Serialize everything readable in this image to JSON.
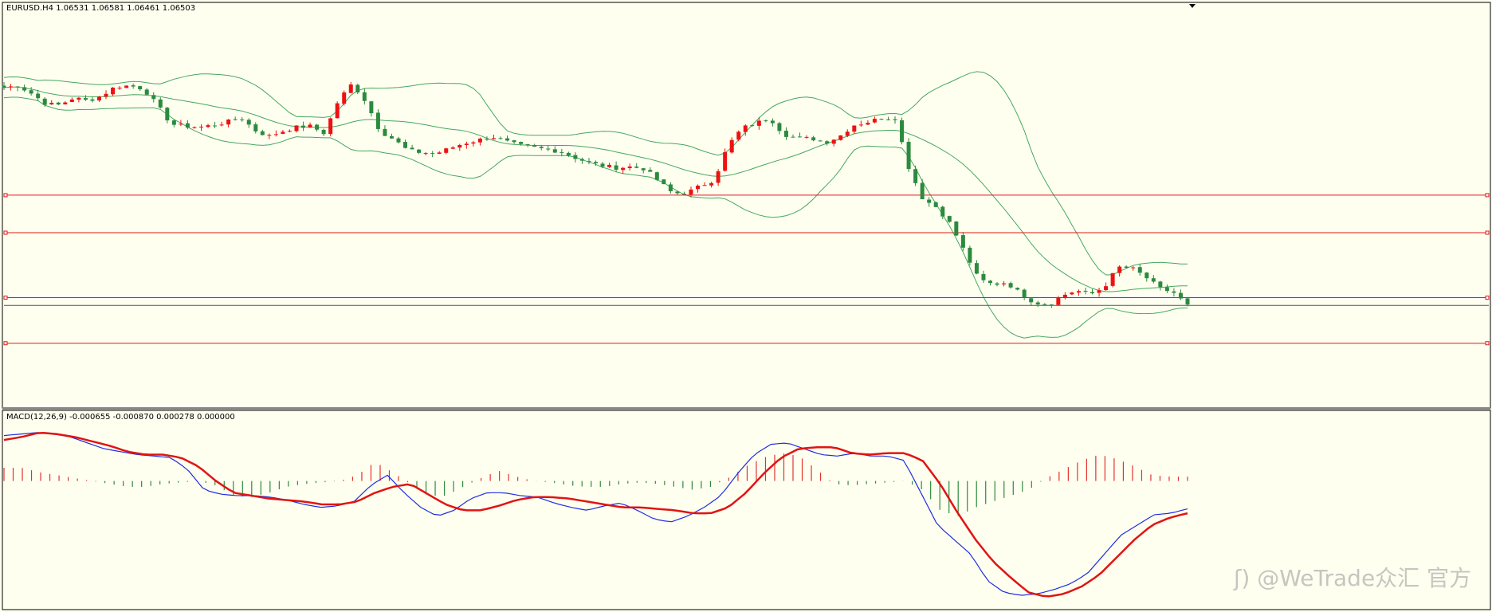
{
  "colors": {
    "background": "#fffff0",
    "bull_candle": "#ee1111",
    "bear_candle": "#2b8a3e",
    "bollinger": "#44a860",
    "level_line": "#e01818",
    "current_price_line": "#555555",
    "macd_line": "#1f2ee0",
    "signal_line": "#e01414",
    "hist_positive": "#e53030",
    "hist_negative": "#2b8a3e"
  },
  "price_panel": {
    "header": "EURUSD.H4  1.06531 1.06581 1.06461 1.06503"
  },
  "macd_panel": {
    "header": "MACD(12,26,9) -0.000655 -0.000870 0.000278 0.000000"
  },
  "watermark": "@WeTrade众汇 官方",
  "watermark_icon": "wetrade-logo-icon",
  "chart_data": [
    {
      "type": "candlestick",
      "title": "EURUSD.H4",
      "ohlc_readout": {
        "open": 1.06531,
        "high": 1.06581,
        "low": 1.06461,
        "close": 1.06503
      },
      "close_path": [
        1.0865,
        1.0867,
        1.0859,
        1.0849,
        1.0848,
        1.0855,
        1.0852,
        1.0857,
        1.0866,
        1.0867,
        1.0864,
        1.0848,
        1.0829,
        1.0827,
        1.0826,
        1.0828,
        1.0831,
        1.0836,
        1.0823,
        1.0817,
        1.0822,
        1.0826,
        1.0827,
        1.082,
        1.0852,
        1.0869,
        1.0851,
        1.0822,
        1.0814,
        1.0803,
        1.0801,
        1.08,
        1.0805,
        1.081,
        1.0813,
        1.0817,
        1.0812,
        1.0808,
        1.0806,
        1.0804,
        1.0802,
        1.0796,
        1.0791,
        1.0788,
        1.0786,
        1.0787,
        1.0785,
        1.0773,
        1.0761,
        1.0761,
        1.0768,
        1.0774,
        1.0808,
        1.0825,
        1.083,
        1.0835,
        1.0819,
        1.0815,
        1.0815,
        1.0811,
        1.0817,
        1.0828,
        1.0831,
        1.0835,
        1.0835,
        1.0785,
        1.0755,
        1.0747,
        1.073,
        1.0703,
        1.0676,
        1.0671,
        1.0673,
        1.0662,
        1.0653,
        1.0651,
        1.066,
        1.0665,
        1.0661,
        1.0668,
        1.0688,
        1.0687,
        1.0678,
        1.0667,
        1.0663,
        1.065
      ],
      "levels": [
        1.0759,
        1.0722,
        1.0658,
        1.0613
      ],
      "current_price": 1.06503,
      "bollinger_bands": {
        "period": "default",
        "upper": "yes",
        "middle": "yes",
        "lower": "yes"
      },
      "grid": false
    },
    {
      "type": "line",
      "title": "MACD(12,26,9)",
      "values": {
        "main": -0.000655,
        "signal": -0.00087,
        "osma": 0.000278,
        "level": 0.0
      },
      "series": [
        {
          "name": "MACD",
          "path": [
            0.0031,
            0.0032,
            0.0033,
            0.0032,
            0.003,
            0.0026,
            0.0022,
            0.002,
            0.0018,
            0.0017,
            0.0016,
            0.0008,
            -0.0006,
            -0.0009,
            -0.001,
            -0.001,
            -0.0011,
            -0.0013,
            -0.0016,
            -0.0018,
            -0.0017,
            -0.0014,
            -0.0003,
            0.0004,
            -0.0008,
            -0.0018,
            -0.0024,
            -0.002,
            -0.0012,
            -0.0008,
            -0.0008,
            -0.001,
            -0.0011,
            -0.0015,
            -0.0018,
            -0.002,
            -0.0017,
            -0.0015,
            -0.002,
            -0.0026,
            -0.0028,
            -0.0024,
            -0.0018,
            -0.001,
            0.0005,
            0.0018,
            0.0025,
            0.0026,
            0.0022,
            0.0018,
            0.0017,
            0.0019,
            0.0017,
            0.0017,
            0.0014,
            -0.0008,
            -0.003,
            -0.004,
            -0.005,
            -0.0068,
            -0.0076,
            -0.0078,
            -0.0077,
            -0.0074,
            -0.007,
            -0.0063,
            -0.005,
            -0.0037,
            -0.003,
            -0.0023,
            -0.0022,
            -0.0019
          ]
        },
        {
          "name": "Signal",
          "path": [
            0.0028,
            0.003,
            0.0033,
            0.0032,
            0.003,
            0.0027,
            0.0024,
            0.002,
            0.0018,
            0.0018,
            0.0016,
            0.001,
            0.0,
            -0.0008,
            -0.001,
            -0.0012,
            -0.0013,
            -0.0014,
            -0.0016,
            -0.0016,
            -0.0014,
            -0.0008,
            -0.0004,
            -0.0002,
            -0.0009,
            -0.0016,
            -0.002,
            -0.002,
            -0.0017,
            -0.0013,
            -0.0011,
            -0.0011,
            -0.0012,
            -0.0014,
            -0.0016,
            -0.0018,
            -0.0018,
            -0.0019,
            -0.002,
            -0.0022,
            -0.0022,
            -0.0018,
            -0.0008,
            0.0005,
            0.0016,
            0.0022,
            0.0023,
            0.0023,
            0.0019,
            0.0018,
            0.0019,
            0.0019,
            0.0014,
            -0.0002,
            -0.0022,
            -0.004,
            -0.0055,
            -0.0066,
            -0.0076,
            -0.0079,
            -0.0077,
            -0.0072,
            -0.0064,
            -0.0052,
            -0.004,
            -0.003,
            -0.0025,
            -0.0022
          ]
        }
      ],
      "histogram_path": [
        0.0009,
        0.0009,
        0.0006,
        0.0004,
        0.0002,
        0.0,
        -0.0002,
        -0.0004,
        -0.0004,
        -0.0002,
        -0.0001,
        0.0,
        -0.0003,
        -0.001,
        -0.0011,
        -0.0008,
        -0.0004,
        -0.0002,
        -0.0001,
        0.0,
        0.0004,
        0.0013,
        0.0006,
        -0.0002,
        -0.001,
        -0.001,
        -0.0004,
        0.0002,
        0.0007,
        0.0003,
        0.0,
        -0.0001,
        -0.0003,
        -0.0004,
        -0.0004,
        -0.0002,
        -0.0001,
        -0.0002,
        -0.0004,
        -0.0006,
        -0.0004,
        0.0002,
        0.001,
        0.0016,
        0.0019,
        0.0017,
        0.0008,
        -0.0002,
        -0.0003,
        -0.0002,
        -0.0001,
        0.0,
        -0.0006,
        -0.002,
        -0.0024,
        -0.0018,
        -0.0014,
        -0.001,
        -0.0006,
        0.0002,
        0.0008,
        0.0014,
        0.0018,
        0.0015,
        0.001,
        0.0004,
        0.0003,
        0.0003
      ],
      "grid": false
    }
  ]
}
